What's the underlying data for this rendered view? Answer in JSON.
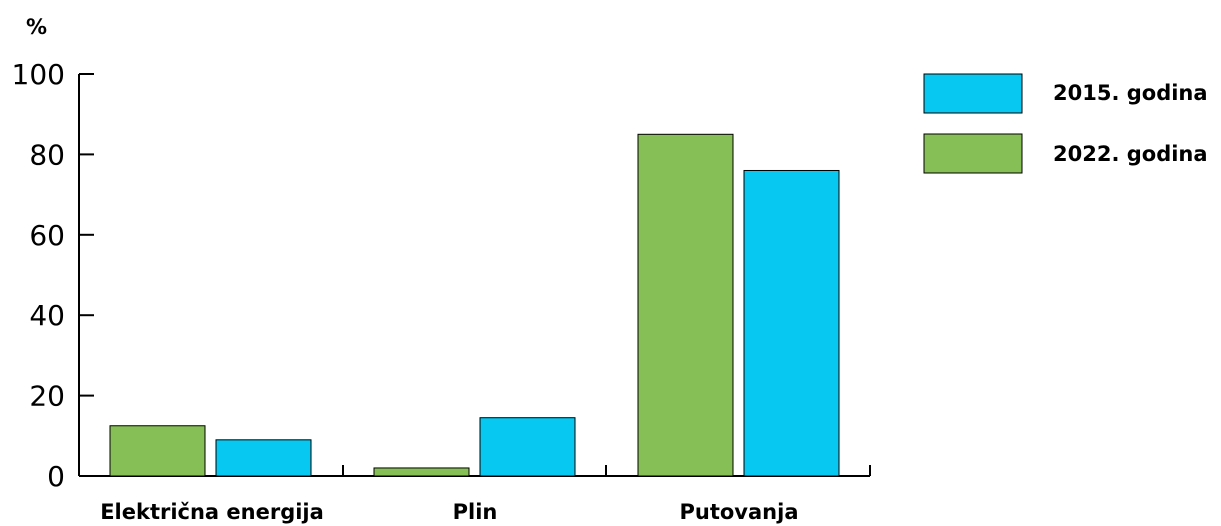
{
  "chart_data": {
    "type": "bar",
    "ylabel": "%",
    "ylim": [
      0,
      100
    ],
    "yticks": [
      "0",
      "20",
      "40",
      "60",
      "80",
      "100"
    ],
    "categories": [
      "Električna energija",
      "Plin",
      "Putovanja"
    ],
    "series": [
      {
        "name": "2022. godina",
        "color": "#86BF55",
        "values": [
          12.5,
          2,
          85
        ]
      },
      {
        "name": "2015. godina",
        "color": "#06C8F0",
        "values": [
          9,
          14.5,
          76
        ]
      }
    ],
    "legend": {
      "placement": "top-right",
      "entries": [
        "2015. godina",
        "2022. godina"
      ]
    },
    "grid": false
  }
}
